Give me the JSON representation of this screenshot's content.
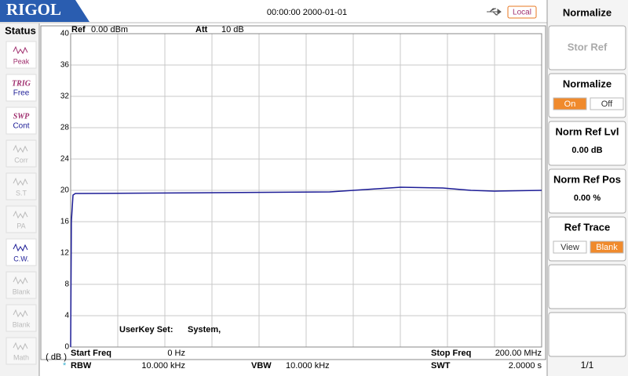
{
  "header": {
    "brand": "RIGOL",
    "datetime": "00:00:00 2000-01-01",
    "remote": "Local"
  },
  "status": {
    "title": "Status",
    "items": [
      {
        "label": "Peak",
        "active": true
      },
      {
        "top": "TRIG",
        "label": "Free",
        "active": true
      },
      {
        "top": "SWP",
        "label": "Cont",
        "active": true
      },
      {
        "label": "Corr",
        "active": false
      },
      {
        "label": "S.T",
        "active": false
      },
      {
        "label": "PA",
        "active": false
      },
      {
        "label": "C.W.",
        "active": true
      },
      {
        "label": "Blank",
        "active": false
      },
      {
        "label": "Blank",
        "active": false
      },
      {
        "label": "Math",
        "active": false
      }
    ]
  },
  "info": {
    "ref_label": "Ref",
    "ref_value": "0.00 dBm",
    "att_label": "Att",
    "att_value": "10 dB",
    "userkey_label": "UserKey Set:",
    "userkey_value": "System,",
    "start_label": "Start Freq",
    "start_value": "0 Hz",
    "stop_label": "Stop Freq",
    "stop_value": "200.00 MHz",
    "rbw_label": "RBW",
    "rbw_value": "10.000 kHz",
    "vbw_label": "VBW",
    "vbw_value": "10.000 kHz",
    "swt_label": "SWT",
    "swt_value": "2.0000 s"
  },
  "chart_data": {
    "type": "line",
    "y_unit": "( dB )",
    "x": [
      0,
      0.3,
      1,
      2,
      60,
      110,
      125,
      140,
      158,
      170,
      180,
      200
    ],
    "series": [
      {
        "color": "#1c1c96",
        "values": [
          0,
          16,
          19.4,
          19.6,
          19.7,
          19.8,
          20.1,
          20.4,
          20.3,
          20.0,
          19.9,
          20.0
        ]
      }
    ],
    "xlim": [
      0,
      200
    ],
    "xticks": [
      0,
      20,
      40,
      60,
      80,
      100,
      120,
      140,
      160,
      180,
      200
    ],
    "ylim": [
      0,
      40
    ],
    "yticks": [
      0,
      4,
      8,
      12,
      16,
      20,
      24,
      28,
      32,
      36,
      40
    ],
    "grid": true
  },
  "menu": {
    "title": "Normalize",
    "buttons": [
      {
        "label": "Stor Ref",
        "enabled": false
      },
      {
        "label": "Normalize",
        "options": [
          "On",
          "Off"
        ],
        "selected": 0
      },
      {
        "label": "Norm Ref Lvl",
        "value": "0.00 dB"
      },
      {
        "label": "Norm Ref Pos",
        "value": "0.00 %"
      },
      {
        "label": "Ref Trace",
        "options": [
          "View",
          "Blank"
        ],
        "selected": 1
      }
    ],
    "page": "1/1"
  }
}
